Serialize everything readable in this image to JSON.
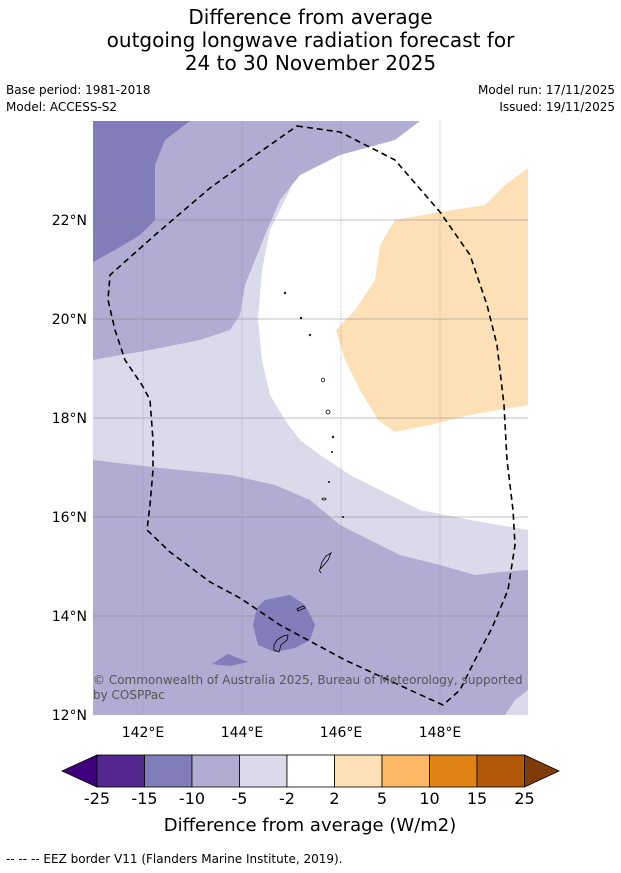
{
  "title_lines": [
    "Difference from average",
    "outgoing longwave radiation forecast for",
    "24 to 30 November 2025"
  ],
  "meta_left": [
    "Base period: 1981-2018",
    "Model: ACCESS-S2"
  ],
  "meta_right": [
    "Model run: 17/11/2025",
    "Issued: 19/11/2025"
  ],
  "map": {
    "lat_ticks": [
      "12°N",
      "14°N",
      "16°N",
      "18°N",
      "20°N",
      "22°N"
    ],
    "lon_ticks": [
      "142°E",
      "144°E",
      "146°E",
      "148°E"
    ],
    "copyright": [
      "© Commonwealth of Australia 2025, Bureau of Meteorology, supported",
      "by COSPPac"
    ]
  },
  "colorbar": {
    "ticks": [
      "-25",
      "-15",
      "-10",
      "-5",
      "-2",
      "2",
      "5",
      "10",
      "15",
      "25"
    ],
    "label": "Difference from average (W/m2)",
    "colors": [
      "#3f007d",
      "#54278f",
      "#807dba",
      "#b1acd2",
      "#dadaeb",
      "#ffffff",
      "#fee0b6",
      "#fdb863",
      "#e08214",
      "#b35806",
      "#7f3b08"
    ]
  },
  "footnote": "--  --  -- EEZ border V11 (Flanders Marine Institute, 2019)."
}
